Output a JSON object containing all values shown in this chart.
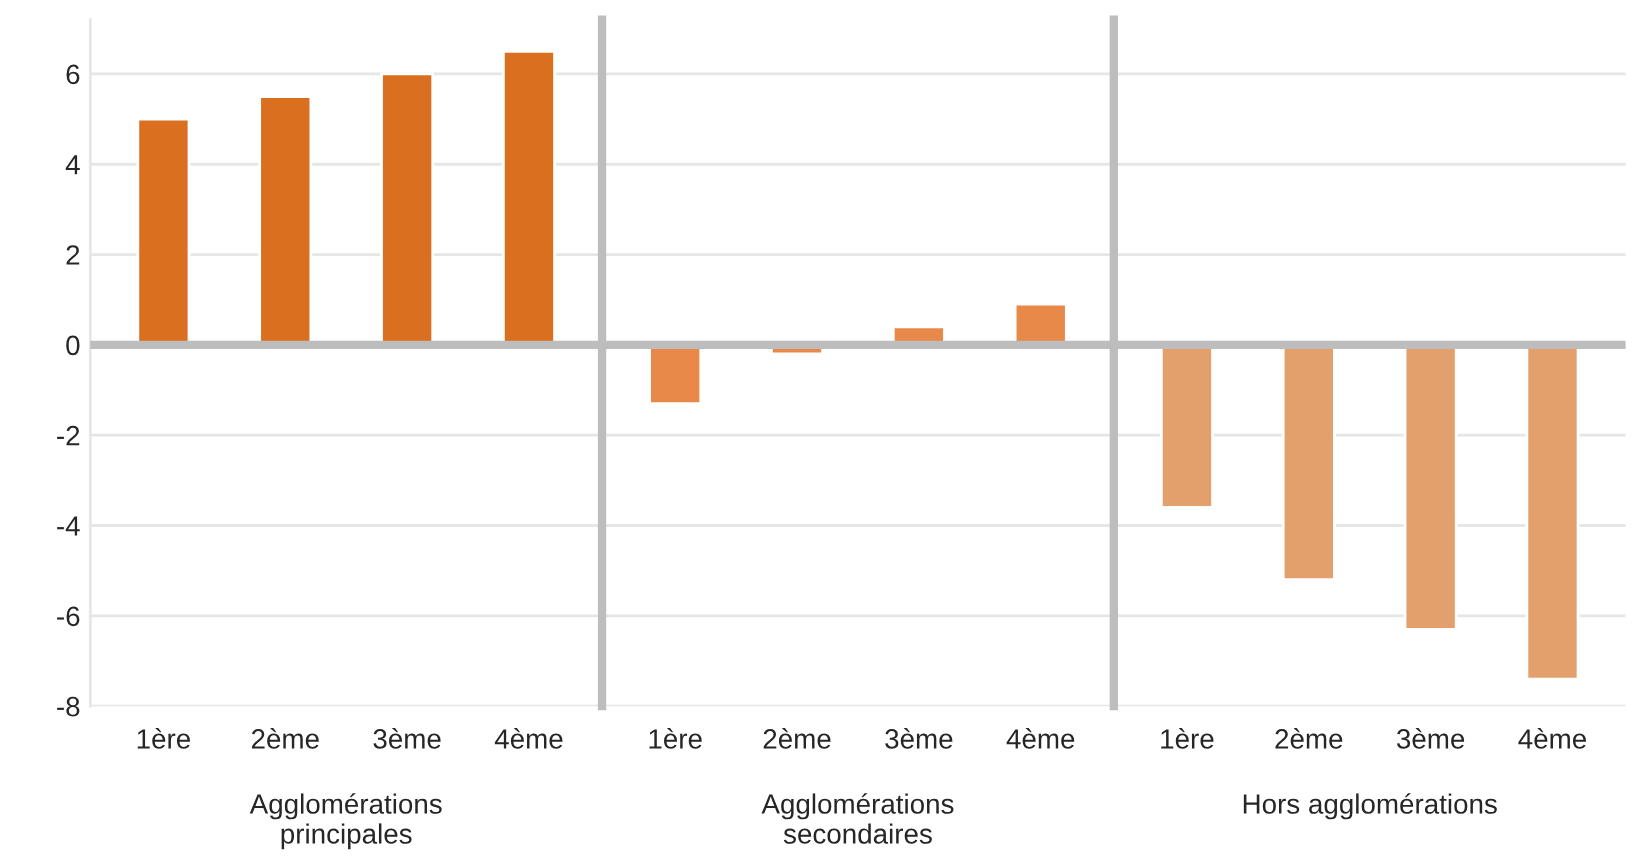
{
  "chart_data": [
    {
      "type": "bar",
      "categories": [
        "1ère",
        "2ème",
        "3ème",
        "4ème"
      ],
      "values": [
        5.0,
        5.5,
        6.0,
        6.5
      ],
      "color": "#d96f1f",
      "xlabel": "Agglomérations\nprincipales",
      "ylim": [
        -8,
        7.2
      ],
      "yticks": [
        -8,
        -6,
        -4,
        -2,
        0,
        2,
        4,
        6
      ],
      "grid": "y"
    },
    {
      "type": "bar",
      "categories": [
        "1ère",
        "2ème",
        "3ème",
        "4ème"
      ],
      "values": [
        -1.3,
        -0.2,
        0.4,
        0.9
      ],
      "color": "#e8894a",
      "xlabel": "Agglomérations\nsecondaires",
      "ylim": [
        -8,
        7.2
      ],
      "yticks": [
        -8,
        -6,
        -4,
        -2,
        0,
        2,
        4,
        6
      ],
      "grid": "y",
      "tick_labels": "x"
    },
    {
      "type": "bar",
      "categories": [
        "1ère",
        "2ème",
        "3ème",
        "4ème"
      ],
      "values": [
        -3.6,
        -5.2,
        -6.3,
        -7.4
      ],
      "color": "#e4a06c",
      "xlabel": "Hors agglomérations",
      "ylim": [
        -8,
        7.2
      ],
      "yticks": [
        -8,
        -6,
        -4,
        -2,
        0,
        2,
        4,
        6
      ],
      "grid": "y",
      "tick_labels": "x"
    }
  ]
}
